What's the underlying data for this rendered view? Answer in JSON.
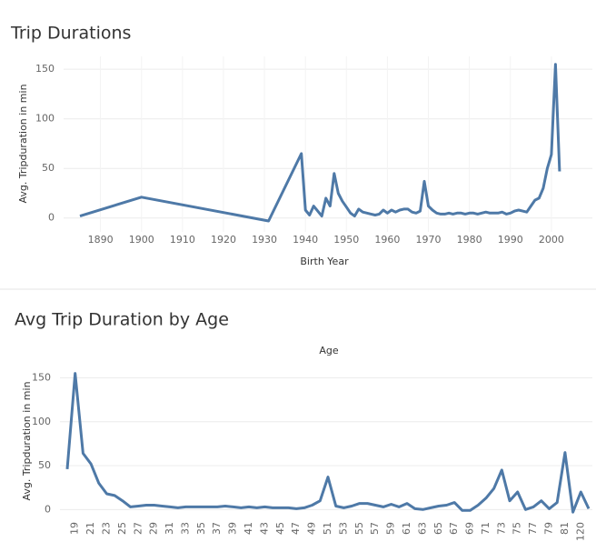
{
  "chart_data": [
    {
      "type": "line",
      "title": "Trip Durations",
      "x_label": "Birth Year",
      "y_label": "Avg. Tripduration in min",
      "x": [
        1885,
        1900,
        1931,
        1939,
        1940,
        1941,
        1942,
        1943,
        1944,
        1945,
        1946,
        1947,
        1948,
        1949,
        1950,
        1951,
        1952,
        1953,
        1954,
        1955,
        1956,
        1957,
        1958,
        1959,
        1960,
        1961,
        1962,
        1963,
        1964,
        1965,
        1966,
        1967,
        1968,
        1969,
        1970,
        1971,
        1972,
        1973,
        1974,
        1975,
        1976,
        1977,
        1978,
        1979,
        1980,
        1981,
        1982,
        1983,
        1984,
        1985,
        1986,
        1987,
        1988,
        1989,
        1990,
        1991,
        1992,
        1993,
        1994,
        1995,
        1996,
        1997,
        1998,
        1999,
        2000,
        2001,
        2002
      ],
      "values": [
        2,
        21,
        -3,
        65,
        8,
        3,
        12,
        7,
        2,
        20,
        12,
        45,
        25,
        17,
        11,
        5,
        2,
        9,
        6,
        5,
        4,
        3,
        4,
        8,
        5,
        8,
        6,
        8,
        9,
        9,
        6,
        5,
        7,
        37,
        12,
        8,
        5,
        4,
        4,
        5,
        4,
        5,
        5,
        4,
        5,
        5,
        4,
        5,
        6,
        5,
        5,
        5,
        6,
        4,
        5,
        7,
        8,
        7,
        6,
        12,
        18,
        20,
        30,
        50,
        64,
        155,
        47
      ],
      "color": "#4e79a7",
      "xlim": [
        1881,
        2010
      ],
      "ylim": [
        -14,
        163
      ],
      "xticks": [
        1890,
        1900,
        1910,
        1920,
        1930,
        1940,
        1950,
        1960,
        1970,
        1980,
        1990,
        2000
      ],
      "yticks": [
        0,
        50,
        100,
        150
      ],
      "grid": true
    },
    {
      "type": "line",
      "title": "Avg Trip Duration by Age",
      "x_label": "Age",
      "y_label": "Avg. Tripduration in min",
      "categories": [
        null,
        "19",
        null,
        "21",
        null,
        "23",
        null,
        "25",
        null,
        "27",
        null,
        "29",
        null,
        "31",
        null,
        "33",
        null,
        "35",
        null,
        "37",
        null,
        "39",
        null,
        "41",
        null,
        "43",
        null,
        "45",
        null,
        "47",
        null,
        "49",
        null,
        "51",
        null,
        "53",
        null,
        "55",
        null,
        "57",
        null,
        "59",
        null,
        "61",
        null,
        "63",
        null,
        "65",
        null,
        "67",
        null,
        "69",
        null,
        "71",
        null,
        "73",
        null,
        "75",
        null,
        "77",
        null,
        "79",
        null,
        "81",
        null,
        "120",
        null
      ],
      "values": [
        46,
        155,
        64,
        52,
        30,
        18,
        16,
        10,
        3,
        4,
        5,
        5,
        4,
        3,
        2,
        3,
        3,
        3,
        3,
        3,
        4,
        3,
        2,
        3,
        2,
        3,
        2,
        2,
        2,
        1,
        2,
        5,
        10,
        37,
        4,
        2,
        4,
        7,
        7,
        5,
        3,
        6,
        3,
        7,
        1,
        0,
        2,
        4,
        5,
        8,
        -1,
        -1,
        5,
        13,
        24,
        45,
        10,
        20,
        0,
        3,
        10,
        1,
        8,
        65,
        -3,
        20,
        1
      ],
      "color": "#4e79a7",
      "ylim": [
        -10,
        166
      ],
      "yticks": [
        0,
        50,
        100,
        150
      ],
      "grid": true
    }
  ]
}
